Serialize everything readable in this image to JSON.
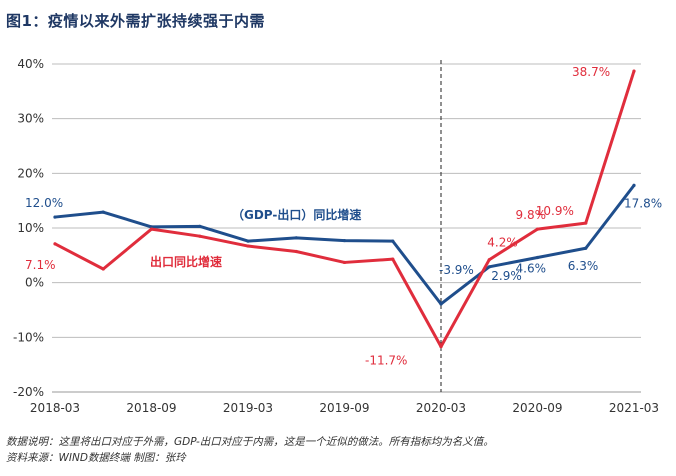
{
  "title": "图1：疫情以来外需扩张持续强于内需",
  "chart_data": {
    "type": "line",
    "x": [
      "2018-03",
      "2018-06",
      "2018-09",
      "2018-12",
      "2019-03",
      "2019-06",
      "2019-09",
      "2019-12",
      "2020-03",
      "2020-06",
      "2020-09",
      "2020-12",
      "2021-03"
    ],
    "x_tick_labels": [
      "2018-03",
      "2018-09",
      "2019-03",
      "2019-09",
      "2020-03",
      "2020-09",
      "2021-03"
    ],
    "ylim": [
      -20,
      40
    ],
    "y_ticks": [
      -20,
      -10,
      0,
      10,
      20,
      30,
      40
    ],
    "y_tick_labels": [
      "-20%",
      "-10%",
      "0%",
      "10%",
      "20%",
      "30%",
      "40%"
    ],
    "grid": true,
    "vline_at": "2020-03",
    "series": [
      {
        "name": "（GDP-出口）同比增速",
        "color": "#1f4e8c",
        "values": [
          12.0,
          12.9,
          10.2,
          10.3,
          7.6,
          8.2,
          7.7,
          7.6,
          -3.9,
          2.9,
          4.6,
          6.3,
          17.8
        ]
      },
      {
        "name": "出口同比增速",
        "color": "#e02d3c",
        "values": [
          7.1,
          2.5,
          9.8,
          8.5,
          6.7,
          5.7,
          3.7,
          4.3,
          -11.7,
          4.2,
          9.8,
          10.9,
          38.7
        ]
      }
    ],
    "data_labels": [
      {
        "series": 0,
        "index": 0,
        "text": "12.0%"
      },
      {
        "series": 0,
        "index": 8,
        "text": "-3.9%"
      },
      {
        "series": 0,
        "index": 9,
        "text": "2.9%"
      },
      {
        "series": 0,
        "index": 10,
        "text": "4.6%"
      },
      {
        "series": 0,
        "index": 11,
        "text": "6.3%"
      },
      {
        "series": 0,
        "index": 12,
        "text": "17.8%"
      },
      {
        "series": 1,
        "index": 0,
        "text": "7.1%"
      },
      {
        "series": 1,
        "index": 8,
        "text": "-11.7%"
      },
      {
        "series": 1,
        "index": 9,
        "text": "4.2%"
      },
      {
        "series": 1,
        "index": 10,
        "text": "9.8%"
      },
      {
        "series": 1,
        "index": 11,
        "text": "10.9%"
      },
      {
        "series": 1,
        "index": 12,
        "text": "38.7%"
      }
    ]
  },
  "notes": {
    "explanation": "数据说明：这里将出口对应于外需，GDP-出口对应于内需，这是一个近似的做法。所有指标均为名义值。",
    "source": "资料来源：WIND数据终端       制图：张玲"
  }
}
